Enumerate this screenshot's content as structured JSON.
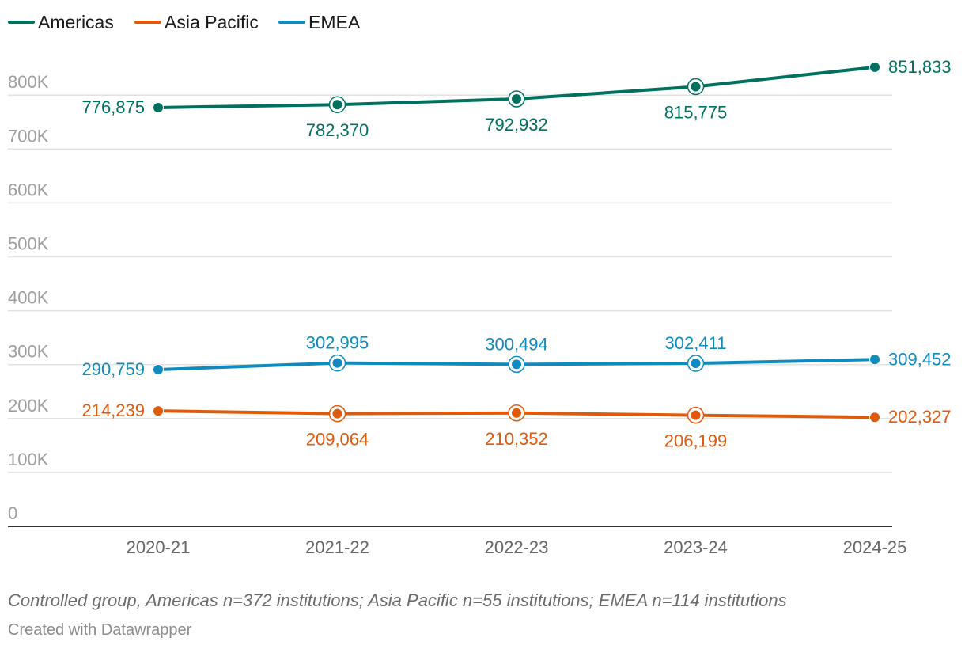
{
  "chart_data": {
    "type": "line",
    "categories": [
      "2020-21",
      "2021-22",
      "2022-23",
      "2023-24",
      "2024-25"
    ],
    "series": [
      {
        "name": "Americas",
        "color": "#00705f",
        "values": [
          776875,
          782370,
          792932,
          815775,
          851833
        ],
        "labels": [
          "776,875",
          "782,370",
          "792,932",
          "815,775",
          "851,833"
        ]
      },
      {
        "name": "Asia Pacific",
        "color": "#e05a0c",
        "values": [
          214239,
          209064,
          210352,
          206199,
          202327
        ],
        "labels": [
          "214,239",
          "209,064",
          "210,352",
          "206,199",
          "202,327"
        ]
      },
      {
        "name": "EMEA",
        "color": "#0f8bbf",
        "values": [
          290759,
          302995,
          300494,
          302411,
          309452
        ],
        "labels": [
          "290,759",
          "302,995",
          "300,494",
          "302,411",
          "309,452"
        ]
      }
    ],
    "ylim": [
      0,
      800000
    ],
    "yticks": [
      0,
      100000,
      200000,
      300000,
      400000,
      500000,
      600000,
      700000,
      800000
    ],
    "ytick_labels": [
      "0",
      "100K",
      "200K",
      "300K",
      "400K",
      "500K",
      "600K",
      "700K",
      "800K"
    ],
    "grid": true,
    "legend_position": "top-left"
  },
  "footer": {
    "note": "Controlled group, Americas n=372 institutions; Asia Pacific n=55 institutions; EMEA n=114 institutions",
    "credit": "Created with Datawrapper"
  }
}
